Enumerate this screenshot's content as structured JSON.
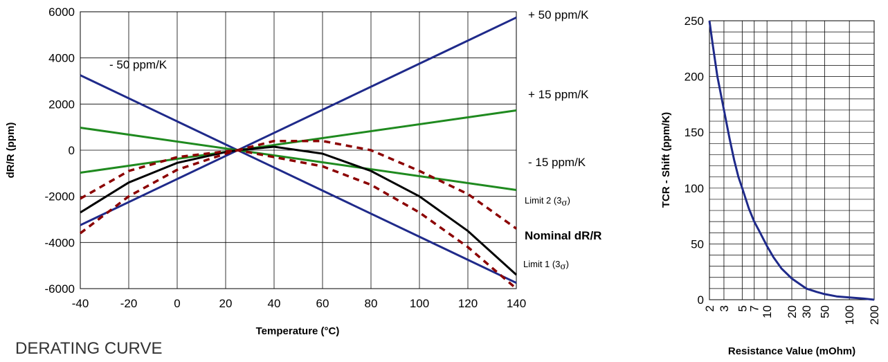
{
  "caption": "DERATING CURVE",
  "chart_data": [
    {
      "type": "line",
      "xlabel": "Temperature (°C)",
      "ylabel": "dR/R (ppm)",
      "xlim": [
        -40,
        140
      ],
      "ylim": [
        -6000,
        6000
      ],
      "x_ticks": [
        "-40",
        "-20",
        "0",
        "20",
        "40",
        "60",
        "80",
        "100",
        "120",
        "140"
      ],
      "y_ticks": [
        "6000",
        "4000",
        "2000",
        "0",
        "-2000",
        "-4000",
        "-6000"
      ],
      "grid": true,
      "annotations": {
        "plus50": "+ 50 ppm/K",
        "minus50": "- 50 ppm/K",
        "plus15": "+ 15 ppm/K",
        "minus15": "- 15 ppm/K",
        "limit2": "Limit 2 (3",
        "limit1": "Limit 1 (3",
        "sigma": "σ",
        "close_paren": ")",
        "nominal": "Nominal dR/R"
      },
      "series": [
        {
          "name": "+ 50 ppm/K",
          "color": "#1f2a8a",
          "style": "solid",
          "x": [
            -40,
            140
          ],
          "y": [
            -3250,
            5750
          ]
        },
        {
          "name": "- 50 ppm/K",
          "color": "#1f2a8a",
          "style": "solid",
          "x": [
            -40,
            140
          ],
          "y": [
            3250,
            -5750
          ]
        },
        {
          "name": "+ 15 ppm/K",
          "color": "#1f8a1f",
          "style": "solid",
          "x": [
            -40,
            140
          ],
          "y": [
            -975,
            1725
          ]
        },
        {
          "name": "- 15 ppm/K",
          "color": "#1f8a1f",
          "style": "solid",
          "x": [
            -40,
            140
          ],
          "y": [
            975,
            -1725
          ]
        },
        {
          "name": "Nominal dR/R",
          "color": "#000000",
          "style": "solid",
          "x": [
            -40,
            -20,
            0,
            20,
            25,
            40,
            60,
            80,
            100,
            120,
            140
          ],
          "y": [
            -2700,
            -1400,
            -550,
            -80,
            0,
            150,
            -150,
            -900,
            -2000,
            -3500,
            -5400
          ]
        },
        {
          "name": "Limit 2 (3σ)",
          "color": "#8b0000",
          "style": "dashed",
          "x": [
            -40,
            -20,
            0,
            20,
            25,
            40,
            60,
            80,
            100,
            120,
            140
          ],
          "y": [
            -2100,
            -900,
            -300,
            -50,
            0,
            400,
            400,
            0,
            -900,
            -1900,
            -3400
          ]
        },
        {
          "name": "Limit 1 (3σ)",
          "color": "#8b0000",
          "style": "dashed",
          "x": [
            -40,
            -20,
            0,
            20,
            25,
            40,
            60,
            80,
            100,
            120,
            140
          ],
          "y": [
            -3600,
            -2000,
            -850,
            -150,
            0,
            -300,
            -700,
            -1500,
            -2700,
            -4200,
            -6000
          ]
        }
      ]
    },
    {
      "type": "line",
      "xlabel": "Resistance Value (mOhm)",
      "ylabel": "TCR - Shift (ppm/K)",
      "x_scale": "log",
      "xlim": [
        2,
        200
      ],
      "ylim": [
        0,
        250
      ],
      "x_ticks": [
        "2",
        "3",
        "5",
        "7",
        "10",
        "20",
        "30",
        "50",
        "100",
        "200"
      ],
      "y_ticks": [
        "250",
        "200",
        "150",
        "100",
        "50",
        "0"
      ],
      "grid": true,
      "series": [
        {
          "color": "#1f2a8a",
          "style": "solid",
          "x": [
            2,
            2.2,
            2.5,
            3,
            3.5,
            4,
            4.5,
            5,
            6,
            7,
            8,
            10,
            12,
            15,
            20,
            25,
            30,
            40,
            50,
            70,
            100,
            150,
            200
          ],
          "y": [
            250,
            228,
            200,
            170,
            145,
            125,
            110,
            100,
            82,
            70,
            62,
            48,
            38,
            28,
            19,
            14,
            10,
            7,
            5,
            3,
            2,
            1,
            0
          ]
        }
      ]
    }
  ]
}
